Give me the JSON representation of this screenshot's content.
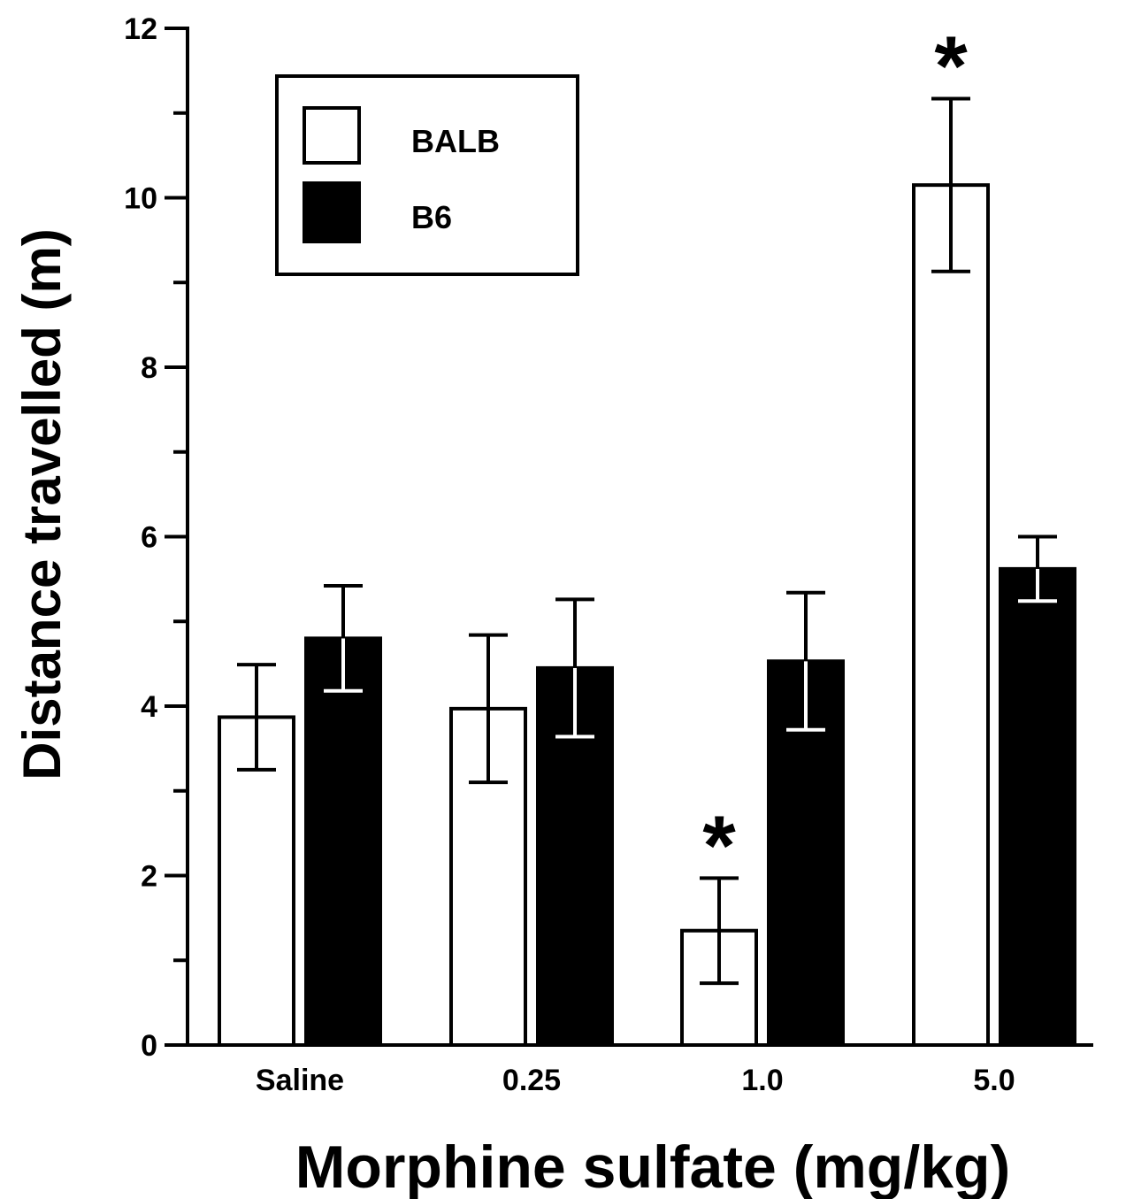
{
  "chart_data": {
    "type": "bar",
    "title": "",
    "xlabel": "Morphine sulfate (mg/kg)",
    "ylabel": "Distance travelled (m)",
    "ylim": [
      0,
      12
    ],
    "yticks": [
      0,
      2,
      4,
      6,
      8,
      10,
      12
    ],
    "categories": [
      "Saline",
      "0.25",
      "1.0",
      "5.0"
    ],
    "series": [
      {
        "name": "BALB",
        "fill": "#ffffff",
        "values": [
          3.87,
          3.97,
          1.35,
          10.15
        ],
        "errors": [
          0.62,
          0.87,
          0.62,
          1.02
        ],
        "significant": [
          false,
          false,
          true,
          true
        ]
      },
      {
        "name": "B6",
        "fill": "#000000",
        "values": [
          4.8,
          4.45,
          4.53,
          5.62
        ],
        "errors": [
          0.62,
          0.81,
          0.81,
          0.38
        ],
        "significant": [
          false,
          false,
          false,
          false
        ]
      }
    ],
    "significance_marker": "*",
    "legend_position": "top-left",
    "grid": false
  }
}
